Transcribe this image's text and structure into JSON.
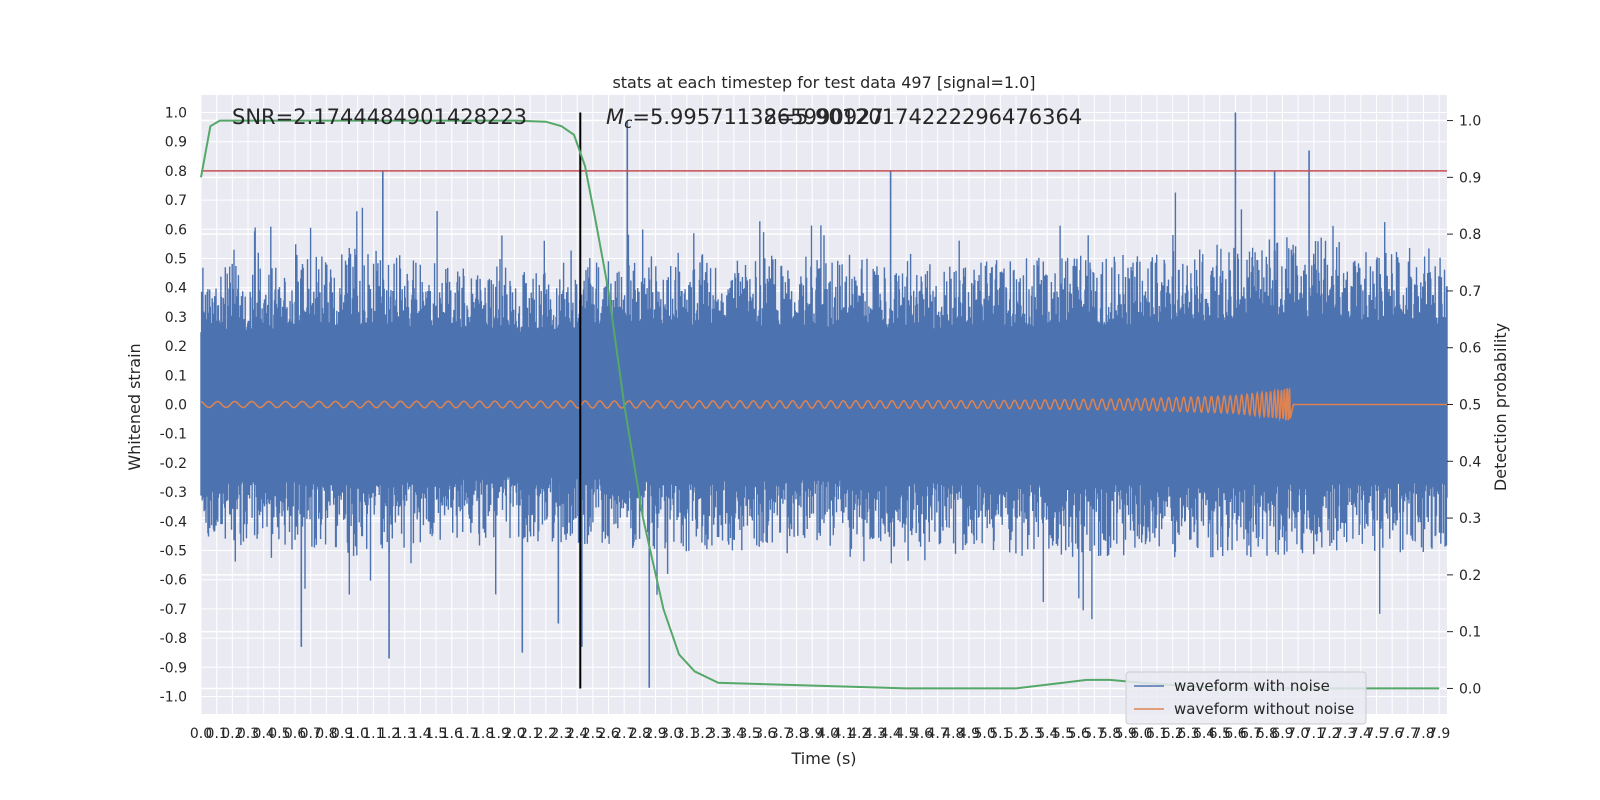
{
  "chart_data": {
    "type": "line",
    "title": "stats at each timestep for test data 497 [signal=1.0]",
    "xlabel": "Time (s)",
    "ylabel": "Whitened strain",
    "y2label": "Detection probability",
    "xlim": [
      0.0,
      7.95
    ],
    "ylim": [
      -1.06,
      1.06
    ],
    "y2lim": [
      -0.045,
      1.045
    ],
    "x_tick_labels": [
      "0.0",
      "0.1",
      "0.2",
      "0.3",
      "0.4",
      "0.5",
      "0.6",
      "0.7",
      "0.8",
      "0.9",
      "1.0",
      "1.1",
      "1.2",
      "1.3",
      "1.4",
      "1.5",
      "1.6",
      "1.7",
      "1.8",
      "1.9",
      "2.0",
      "2.1",
      "2.2",
      "2.3",
      "2.4",
      "2.5",
      "2.6",
      "2.7",
      "2.8",
      "2.9",
      "3.0",
      "3.1",
      "3.2",
      "3.3",
      "3.4",
      "3.5",
      "3.6",
      "3.7",
      "3.8",
      "3.9",
      "4.0",
      "4.1",
      "4.2",
      "4.3",
      "4.4",
      "4.5",
      "4.6",
      "4.7",
      "4.8",
      "4.9",
      "5.0",
      "5.1",
      "5.2",
      "5.3",
      "5.4",
      "5.5",
      "5.6",
      "5.7",
      "5.8",
      "5.9",
      "6.0",
      "6.1",
      "6.2",
      "6.3",
      "6.4",
      "6.5",
      "6.6",
      "6.7",
      "6.8",
      "6.9",
      "7.0",
      "7.1",
      "7.2",
      "7.3",
      "7.4",
      "7.5",
      "7.6",
      "7.7",
      "7.8",
      "7.9"
    ],
    "y_tick_labels": [
      "1.0",
      "0.9",
      "0.8",
      "0.7",
      "0.6",
      "0.5",
      "0.4",
      "0.3",
      "0.2",
      "0.1",
      "0.0",
      "-0.1",
      "-0.2",
      "-0.3",
      "-0.4",
      "-0.5",
      "-0.6",
      "-0.7",
      "-0.8",
      "-0.9",
      "-1.0"
    ],
    "y2_tick_labels": [
      "1.0",
      "0.9",
      "0.8",
      "0.7",
      "0.6",
      "0.5",
      "0.4",
      "0.3",
      "0.2",
      "0.1",
      "0.0"
    ],
    "annotations": {
      "snr": "SNR=2.1744484901428223",
      "mc_symbol": "M",
      "mc_sub": "c",
      "mc_value": "=5.9957113865990927",
      "overlap": "2=5.90120174222296476364"
    },
    "threshold_line": {
      "y": 0.8,
      "color": "#c44e52"
    },
    "marker_line": {
      "x": 2.42,
      "color": "#000000"
    },
    "series": [
      {
        "name": "waveform with noise",
        "color": "#4c72b0",
        "envelope_upper": {
          "x": [
            0.0,
            1.0,
            2.0,
            3.0,
            4.0,
            5.0,
            6.0,
            7.0,
            7.95
          ],
          "y": [
            0.45,
            0.5,
            0.45,
            0.5,
            0.48,
            0.47,
            0.5,
            0.55,
            0.5
          ]
        },
        "envelope_lower": {
          "x": [
            0.0,
            1.0,
            2.0,
            3.0,
            4.0,
            5.0,
            6.0,
            7.0,
            7.95
          ],
          "y": [
            -0.45,
            -0.5,
            -0.45,
            -0.48,
            -0.47,
            -0.5,
            -0.5,
            -0.5,
            -0.48
          ]
        },
        "spikes": [
          {
            "x": 1.16,
            "y": 0.8
          },
          {
            "x": 2.72,
            "y": 0.97
          },
          {
            "x": 4.4,
            "y": 0.8
          },
          {
            "x": 6.6,
            "y": 1.0
          },
          {
            "x": 6.85,
            "y": 0.8
          },
          {
            "x": 7.07,
            "y": 0.87
          },
          {
            "x": 0.64,
            "y": -0.83
          },
          {
            "x": 1.2,
            "y": -0.87
          },
          {
            "x": 2.05,
            "y": -0.85
          },
          {
            "x": 2.28,
            "y": -0.75
          },
          {
            "x": 2.43,
            "y": -0.83
          },
          {
            "x": 2.86,
            "y": -0.97
          }
        ]
      },
      {
        "name": "waveform without noise",
        "color": "#dd8452",
        "chirp_end": 6.95,
        "amplitude": {
          "x": [
            0.0,
            2.5,
            5.0,
            6.0,
            6.6,
            6.9,
            6.95
          ],
          "y": [
            0.01,
            0.012,
            0.013,
            0.02,
            0.03,
            0.05,
            0.06
          ]
        }
      },
      {
        "name": "detection probability",
        "axis": "y2",
        "color": "#55a868",
        "x": [
          0.0,
          0.06,
          0.12,
          0.3,
          1.0,
          2.0,
          2.2,
          2.3,
          2.38,
          2.45,
          2.52,
          2.6,
          2.7,
          2.82,
          2.95,
          3.05,
          3.15,
          3.3,
          4.5,
          5.2,
          5.5,
          5.65,
          5.8,
          6.0,
          6.5,
          7.9
        ],
        "y": [
          0.9,
          0.99,
          1.0,
          1.0,
          1.0,
          1.0,
          0.998,
          0.99,
          0.975,
          0.92,
          0.82,
          0.7,
          0.5,
          0.3,
          0.14,
          0.06,
          0.03,
          0.01,
          0.0,
          0.0,
          0.01,
          0.015,
          0.015,
          0.01,
          0.0,
          0.0
        ]
      }
    ],
    "legend": {
      "placement": "lower right",
      "entries": [
        {
          "label": "waveform with noise",
          "color": "#4c72b0"
        },
        {
          "label": "waveform without noise",
          "color": "#dd8452"
        }
      ]
    },
    "grid": true,
    "background": "#eaeaf2"
  }
}
